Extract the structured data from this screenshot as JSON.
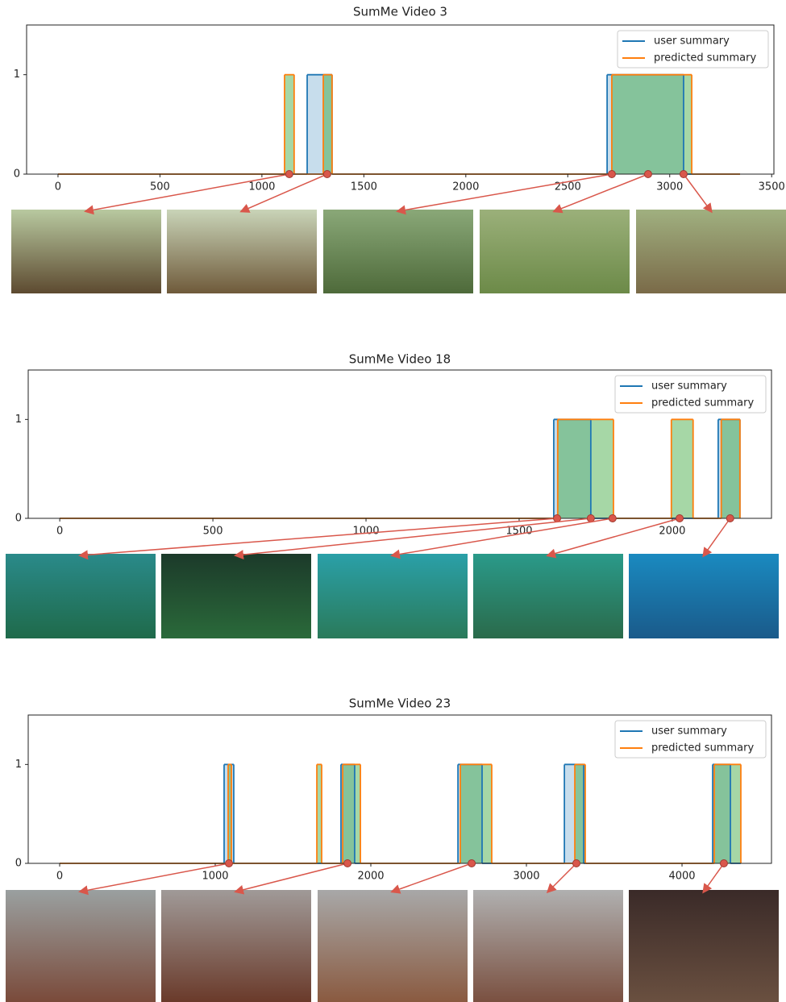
{
  "chart_data": [
    {
      "type": "step",
      "title": "SumMe Video 3",
      "xlim": [
        -154,
        3511
      ],
      "ylim": [
        0,
        1.5
      ],
      "xticks": [
        0,
        500,
        1000,
        1500,
        2000,
        2500,
        3000,
        3500
      ],
      "yticks": [
        0,
        1
      ],
      "legend": "upper right",
      "series": [
        {
          "name": "user summary",
          "color": "#1f77b4",
          "x": [
            0,
            1222,
            1344,
            2693,
            3068,
            3345
          ],
          "values": [
            0,
            1,
            0,
            1,
            0,
            0
          ]
        },
        {
          "name": "predicted summary",
          "color": "#ff7f0e",
          "x": [
            0,
            1111,
            1158,
            1301,
            1344,
            2716,
            3108,
            3345
          ],
          "values": [
            0,
            1,
            0,
            1,
            0,
            1,
            0,
            0
          ]
        }
      ],
      "markers": {
        "color": "#d9574b",
        "x": [
          1134,
          1320,
          2716,
          2894,
          3068
        ],
        "values": [
          0,
          0,
          0,
          0,
          0
        ]
      }
    },
    {
      "type": "step",
      "title": "SumMe Video 18",
      "xlim": [
        -103,
        2324
      ],
      "ylim": [
        0,
        1.5
      ],
      "xticks": [
        0,
        500,
        1000,
        1500,
        2000
      ],
      "yticks": [
        0,
        1
      ],
      "legend": "upper right",
      "series": [
        {
          "name": "user summary",
          "color": "#1f77b4",
          "x": [
            0,
            1613,
            1734,
            2150,
            2221
          ],
          "values": [
            0,
            1,
            0,
            1,
            0
          ]
        },
        {
          "name": "predicted summary",
          "color": "#ff7f0e",
          "x": [
            0,
            1626,
            1808,
            1997,
            2068,
            2160,
            2221
          ],
          "values": [
            0,
            1,
            0,
            1,
            0,
            1,
            0
          ]
        }
      ],
      "markers": {
        "color": "#d9574b",
        "x": [
          1624,
          1734,
          1805,
          2024,
          2189
        ],
        "values": [
          0,
          0,
          0,
          0,
          0
        ]
      }
    },
    {
      "type": "step",
      "title": "SumMe Video 23",
      "xlim": [
        -202,
        4575
      ],
      "ylim": [
        0,
        1.5
      ],
      "xticks": [
        0,
        1000,
        2000,
        3000,
        4000
      ],
      "yticks": [
        0,
        1
      ],
      "legend": "upper right",
      "series": [
        {
          "name": "user summary",
          "color": "#1f77b4",
          "x": [
            0,
            1057,
            1119,
            1808,
            1896,
            2560,
            2715,
            3244,
            3368,
            4197,
            4311,
            4378
          ],
          "values": [
            0,
            1,
            0,
            1,
            0,
            1,
            0,
            1,
            0,
            1,
            0,
            0
          ]
        },
        {
          "name": "predicted summary",
          "color": "#ff7f0e",
          "x": [
            0,
            1083,
            1104,
            1653,
            1684,
            1819,
            1933,
            2575,
            2777,
            3311,
            3378,
            4207,
            4378
          ],
          "values": [
            0,
            1,
            0,
            1,
            0,
            1,
            0,
            1,
            0,
            1,
            0,
            1,
            0
          ]
        }
      ],
      "markers": {
        "color": "#d9574b",
        "x": [
          1088,
          1850,
          2648,
          3321,
          4269
        ],
        "values": [
          0,
          0,
          0,
          0,
          0
        ]
      }
    }
  ]
}
